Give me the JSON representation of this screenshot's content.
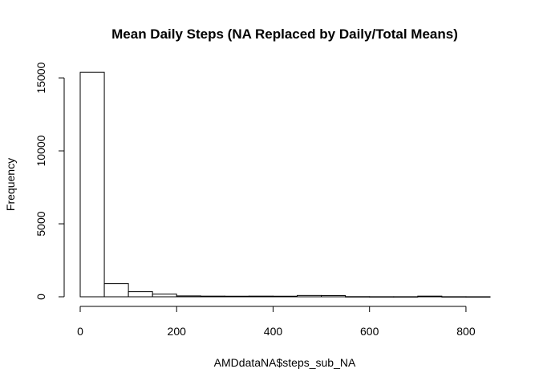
{
  "chart_data": {
    "type": "bar",
    "subtype": "histogram",
    "title": "Mean Daily Steps (NA Replaced by Daily/Total Means)",
    "xlabel": "AMDdataNA$steps_sub_NA",
    "ylabel": "Frequency",
    "xlim": [
      0,
      850
    ],
    "ylim": [
      0,
      15500
    ],
    "x_ticks": [
      0,
      200,
      400,
      600,
      800
    ],
    "y_ticks": [
      0,
      5000,
      10000,
      15000
    ],
    "bin_width": 50,
    "bins": [
      {
        "start": 0,
        "end": 50,
        "count": 15380
      },
      {
        "start": 50,
        "end": 100,
        "count": 900
      },
      {
        "start": 100,
        "end": 150,
        "count": 350
      },
      {
        "start": 150,
        "end": 200,
        "count": 180
      },
      {
        "start": 200,
        "end": 250,
        "count": 60
      },
      {
        "start": 250,
        "end": 300,
        "count": 45
      },
      {
        "start": 300,
        "end": 350,
        "count": 40
      },
      {
        "start": 350,
        "end": 400,
        "count": 45
      },
      {
        "start": 400,
        "end": 450,
        "count": 40
      },
      {
        "start": 450,
        "end": 500,
        "count": 90
      },
      {
        "start": 500,
        "end": 550,
        "count": 85
      },
      {
        "start": 550,
        "end": 600,
        "count": 10
      },
      {
        "start": 600,
        "end": 650,
        "count": 5
      },
      {
        "start": 650,
        "end": 700,
        "count": 5
      },
      {
        "start": 700,
        "end": 750,
        "count": 45
      },
      {
        "start": 750,
        "end": 800,
        "count": 5
      },
      {
        "start": 800,
        "end": 850,
        "count": 3
      }
    ],
    "grid": false,
    "colors": {
      "bar_fill": "#ffffff",
      "bar_stroke": "#000000"
    }
  }
}
